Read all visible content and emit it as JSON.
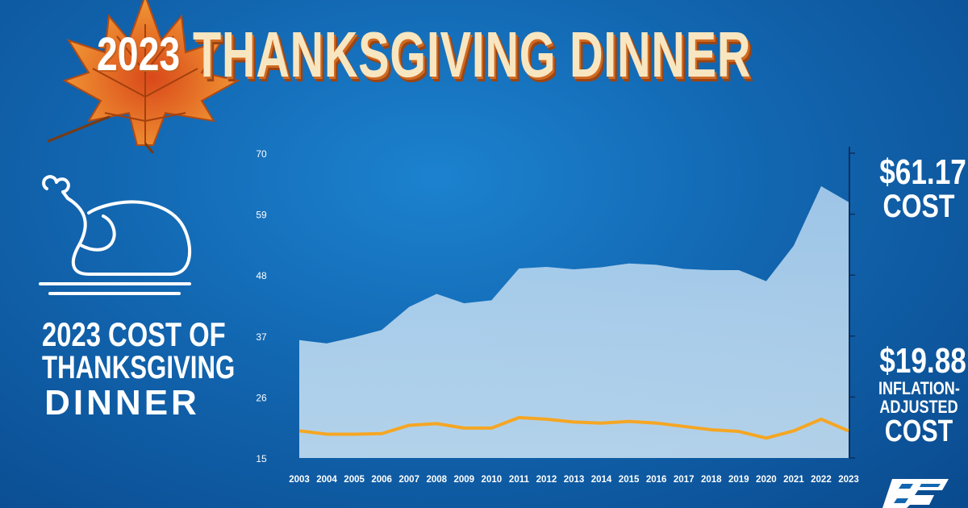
{
  "header": {
    "year": "2023",
    "title": "THANKSGIVING DINNER"
  },
  "left_caption": {
    "line1": "2023 COST OF",
    "line2": "THANKSGIVING",
    "line3": "DINNER"
  },
  "right_panel": {
    "cost_value": "$61.17",
    "cost_label": "COST",
    "adjusted_value": "$19.88",
    "adjusted_label_1": "INFLATION-",
    "adjusted_label_2": "ADJUSTED",
    "adjusted_label_3": "COST"
  },
  "icons": [
    "maple-leaf-icon",
    "roast-turkey-icon",
    "farm-bureau-logo"
  ],
  "colors": {
    "background": "#1266b0",
    "area_fill": "#bcdaf0",
    "inflation_line": "#f5a623",
    "title_text": "#f8e6c0",
    "title_shadow": "#d06a22"
  },
  "chart_data": {
    "type": "area",
    "title": "",
    "xlabel": "",
    "ylabel": "",
    "x": [
      "2003",
      "2004",
      "2005",
      "2006",
      "2007",
      "2008",
      "2009",
      "2010",
      "2011",
      "2012",
      "2013",
      "2014",
      "2015",
      "2016",
      "2017",
      "2018",
      "2019",
      "2020",
      "2021",
      "2022",
      "2023"
    ],
    "ylim": [
      15,
      70
    ],
    "yticks": [
      15,
      26,
      37,
      48,
      59,
      70
    ],
    "grid": false,
    "series": [
      {
        "kind": "area",
        "values": [
          36.28,
          35.68,
          36.78,
          38.1,
          42.26,
          44.61,
          42.91,
          43.47,
          49.2,
          49.48,
          49.04,
          49.41,
          50.11,
          49.87,
          49.12,
          48.9,
          48.91,
          46.9,
          53.31,
          64.05,
          61.17
        ]
      },
      {
        "kind": "line",
        "values": [
          19.9,
          19.3,
          19.3,
          19.4,
          20.9,
          21.2,
          20.4,
          20.4,
          22.3,
          22.0,
          21.5,
          21.3,
          21.6,
          21.3,
          20.7,
          20.1,
          19.8,
          18.6,
          19.9,
          22.0,
          19.88
        ]
      }
    ]
  }
}
